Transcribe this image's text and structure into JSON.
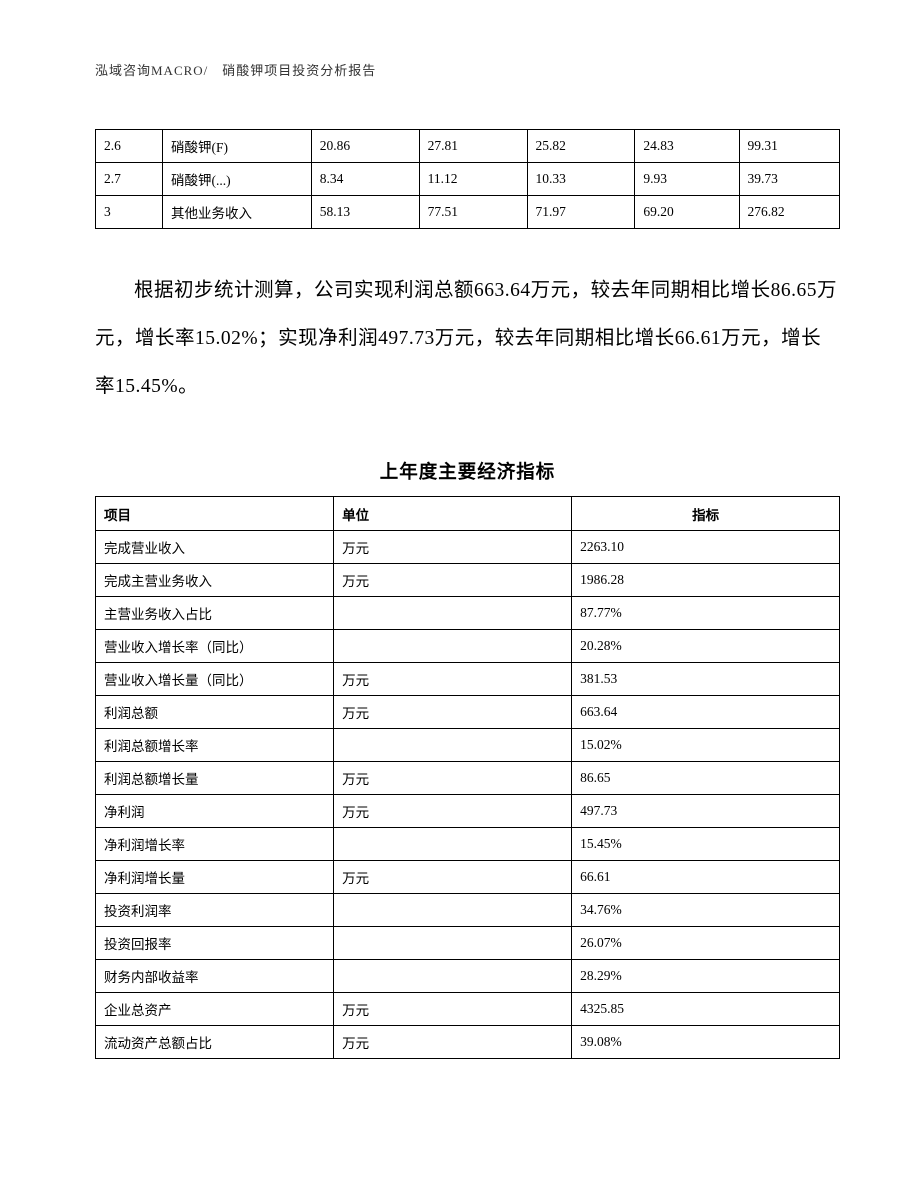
{
  "header": "泓域咨询MACRO/　硝酸钾项目投资分析报告",
  "table1": {
    "rows": [
      {
        "c1": "2.6",
        "c2": "硝酸钾(F)",
        "c3": "20.86",
        "c4": "27.81",
        "c5": "25.82",
        "c6": "24.83",
        "c7": "99.31"
      },
      {
        "c1": "2.7",
        "c2": "硝酸钾(...)",
        "c3": "8.34",
        "c4": "11.12",
        "c5": "10.33",
        "c6": "9.93",
        "c7": "39.73"
      },
      {
        "c1": "3",
        "c2": "其他业务收入",
        "c3": "58.13",
        "c4": "77.51",
        "c5": "71.97",
        "c6": "69.20",
        "c7": "276.82"
      }
    ]
  },
  "body_text": "根据初步统计测算，公司实现利润总额663.64万元，较去年同期相比增长86.65万元，增长率15.02%；实现净利润497.73万元，较去年同期相比增长66.61万元，增长率15.45%。",
  "table2": {
    "title": "上年度主要经济指标",
    "headers": {
      "h1": "项目",
      "h2": "单位",
      "h3": "指标"
    },
    "rows": [
      {
        "item": "完成营业收入",
        "unit": "万元",
        "value": "2263.10"
      },
      {
        "item": "完成主营业务收入",
        "unit": "万元",
        "value": "1986.28"
      },
      {
        "item": "主营业务收入占比",
        "unit": "",
        "value": "87.77%"
      },
      {
        "item": "营业收入增长率（同比）",
        "unit": "",
        "value": "20.28%"
      },
      {
        "item": "营业收入增长量（同比）",
        "unit": "万元",
        "value": "381.53"
      },
      {
        "item": "利润总额",
        "unit": "万元",
        "value": "663.64"
      },
      {
        "item": "利润总额增长率",
        "unit": "",
        "value": "15.02%"
      },
      {
        "item": "利润总额增长量",
        "unit": "万元",
        "value": "86.65"
      },
      {
        "item": "净利润",
        "unit": "万元",
        "value": "497.73"
      },
      {
        "item": "净利润增长率",
        "unit": "",
        "value": "15.45%"
      },
      {
        "item": "净利润增长量",
        "unit": "万元",
        "value": "66.61"
      },
      {
        "item": "投资利润率",
        "unit": "",
        "value": "34.76%"
      },
      {
        "item": "投资回报率",
        "unit": "",
        "value": "26.07%"
      },
      {
        "item": "财务内部收益率",
        "unit": "",
        "value": "28.29%"
      },
      {
        "item": "企业总资产",
        "unit": "万元",
        "value": "4325.85"
      },
      {
        "item": "流动资产总额占比",
        "unit": "万元",
        "value": "39.08%"
      }
    ]
  }
}
